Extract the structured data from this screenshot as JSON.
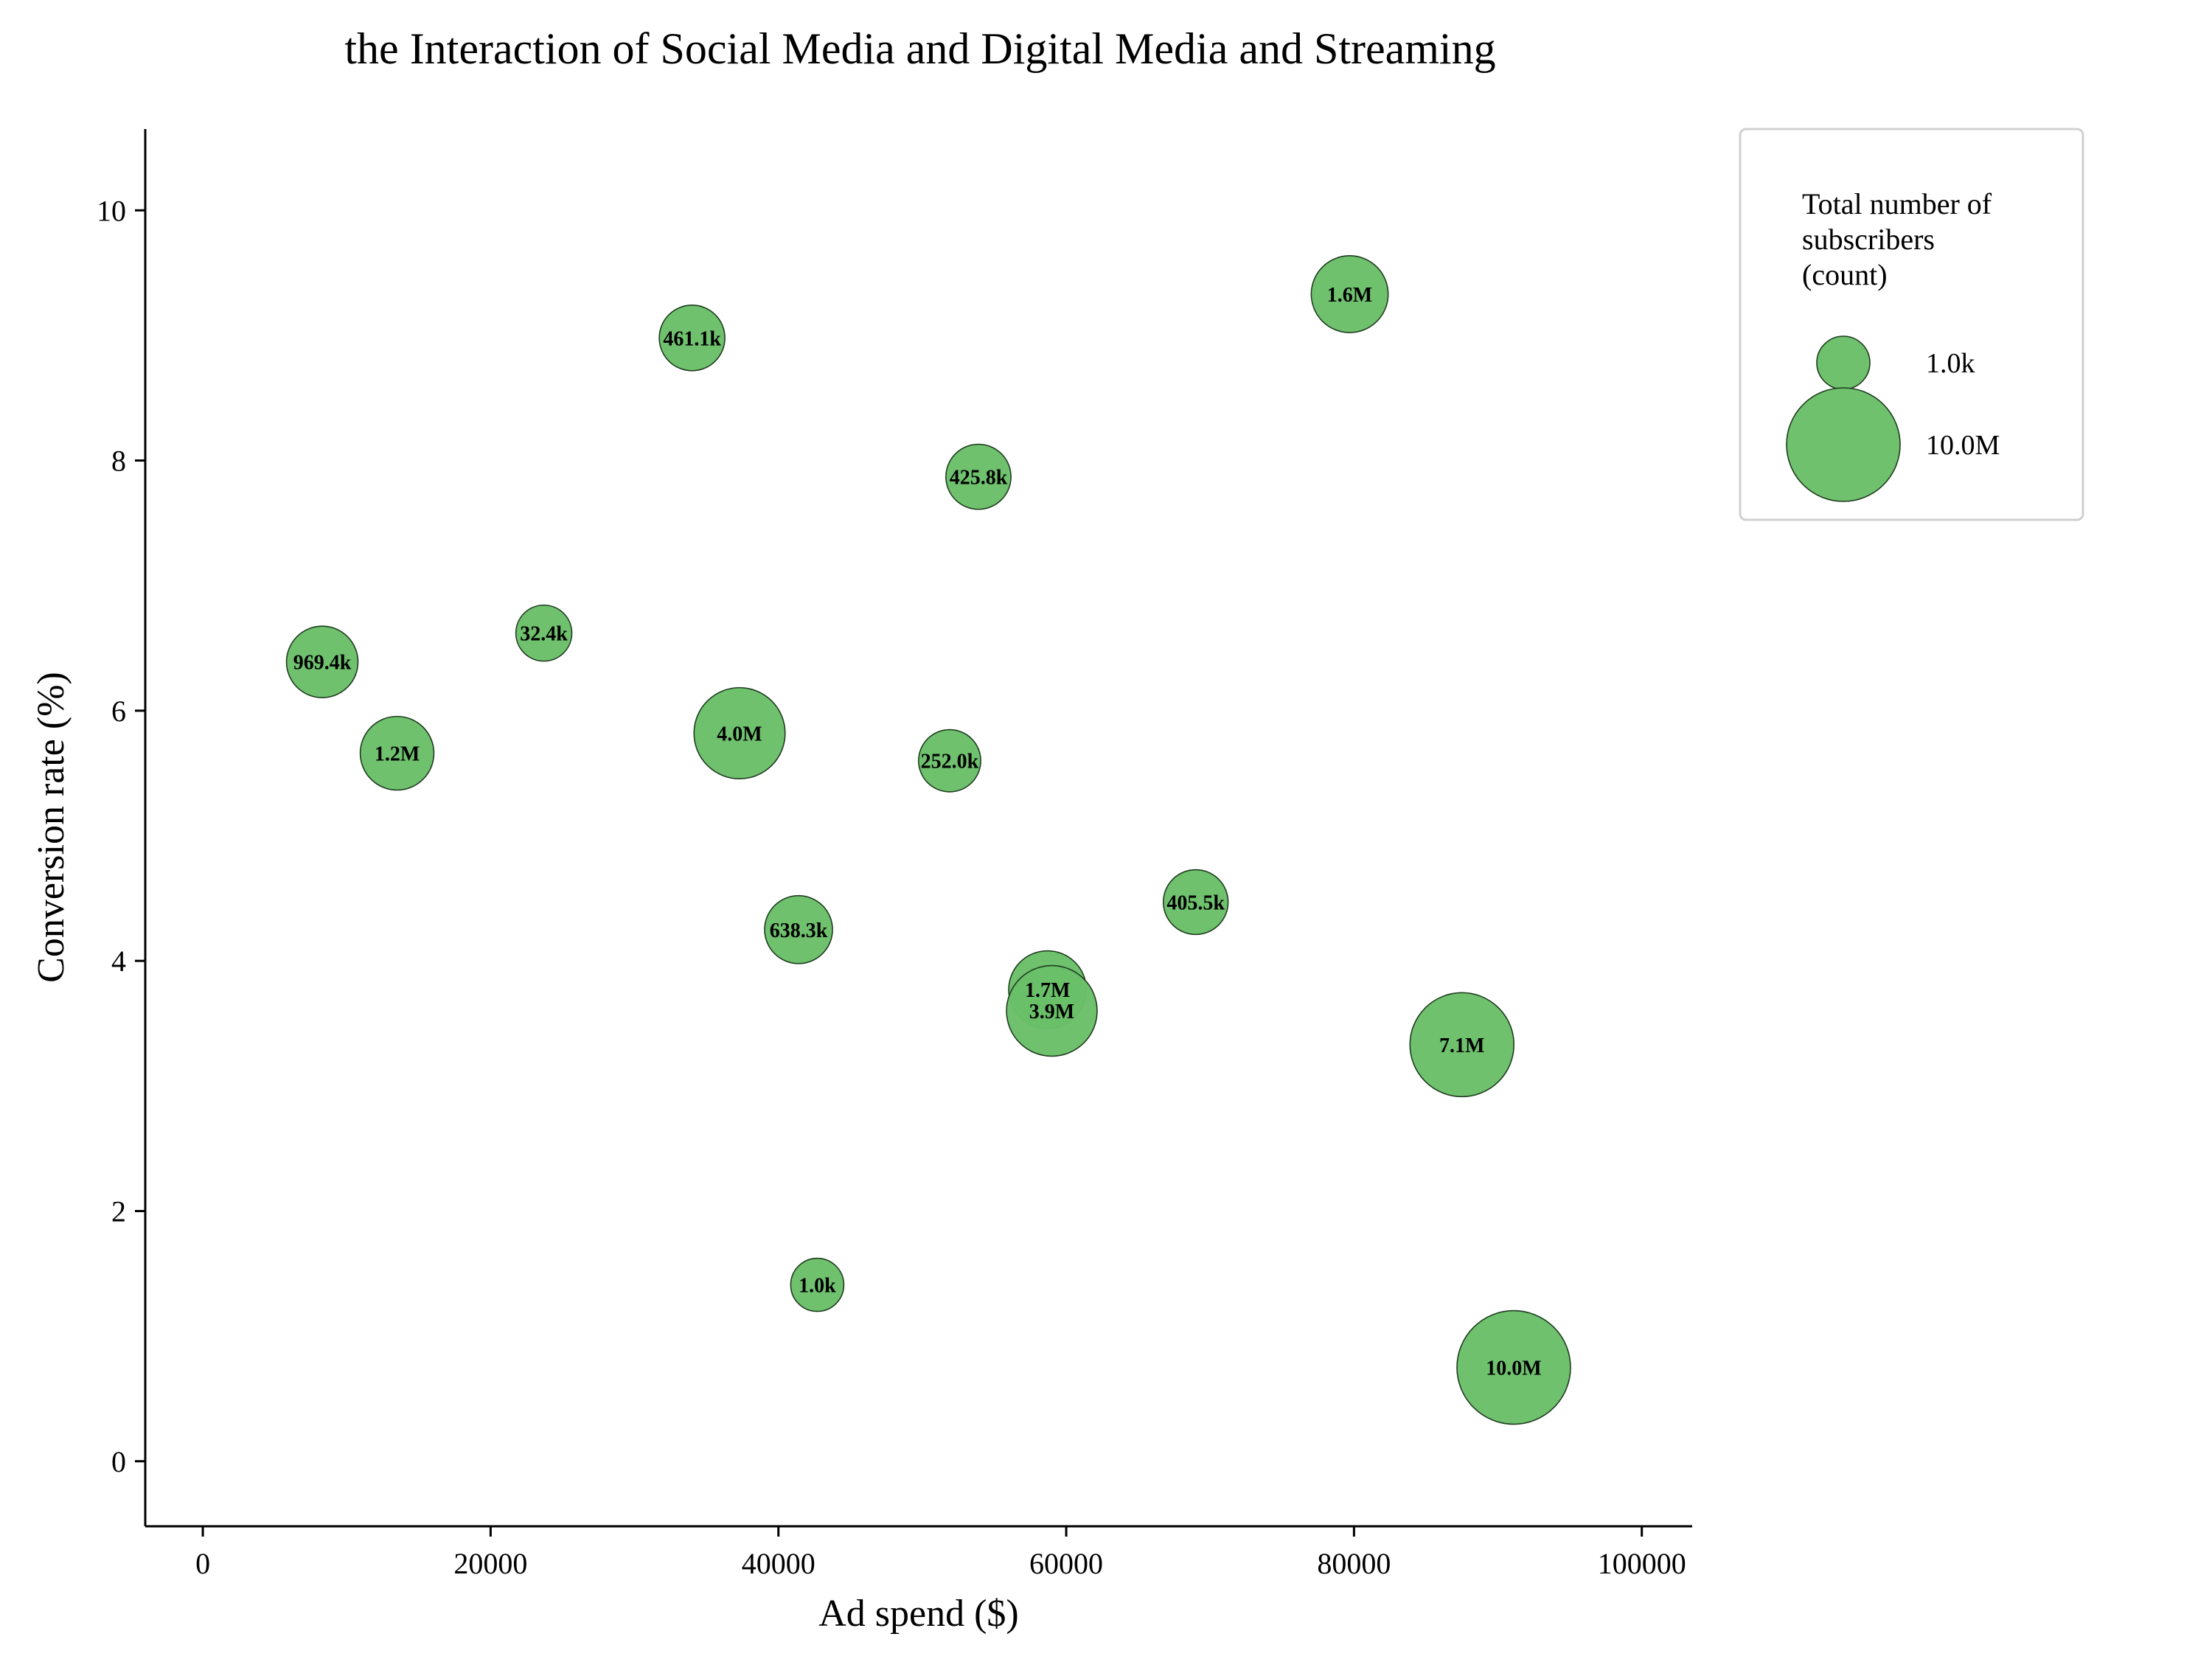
{
  "chart_data": {
    "type": "scatter",
    "title": "the Interaction of Social Media and Digital Media and Streaming",
    "xlabel": "Ad spend ($)",
    "ylabel": "Conversion rate (%)",
    "xlim": [
      -4000,
      103500
    ],
    "ylim": [
      -0.52,
      10.65
    ],
    "xticks": [
      0,
      20000,
      40000,
      60000,
      80000,
      100000
    ],
    "yticks": [
      0,
      2,
      4,
      6,
      8,
      10
    ],
    "grid": false,
    "legend_position": "outside-top-right",
    "colors": {
      "bubble": "#6abf69",
      "edge": "#1f3d1f"
    },
    "legend": {
      "title": "Total number of\nsubscribers\n(count)",
      "entries": [
        {
          "label": "1.0k",
          "value": 1000
        },
        {
          "label": "10.0M",
          "value": 10000000
        }
      ]
    },
    "points": [
      {
        "x": 8300,
        "y": 6.39,
        "size": 969400,
        "label": "969.4k"
      },
      {
        "x": 13500,
        "y": 5.66,
        "size": 1200000,
        "label": "1.2M"
      },
      {
        "x": 23700,
        "y": 6.62,
        "size": 32400,
        "label": "32.4k"
      },
      {
        "x": 34000,
        "y": 8.98,
        "size": 461100,
        "label": "461.1k"
      },
      {
        "x": 37300,
        "y": 5.82,
        "size": 4000000,
        "label": "4.0M"
      },
      {
        "x": 41400,
        "y": 4.25,
        "size": 638300,
        "label": "638.3k"
      },
      {
        "x": 42700,
        "y": 1.41,
        "size": 1000,
        "label": "1.0k"
      },
      {
        "x": 51900,
        "y": 5.6,
        "size": 252000,
        "label": "252.0k"
      },
      {
        "x": 53900,
        "y": 7.87,
        "size": 425800,
        "label": "425.8k"
      },
      {
        "x": 58700,
        "y": 3.77,
        "size": 1700000,
        "label": "1.7M"
      },
      {
        "x": 59000,
        "y": 3.6,
        "size": 3900000,
        "label": "3.9M"
      },
      {
        "x": 69000,
        "y": 4.47,
        "size": 405500,
        "label": "405.5k"
      },
      {
        "x": 79700,
        "y": 9.33,
        "size": 1600000,
        "label": "1.6M"
      },
      {
        "x": 87500,
        "y": 3.33,
        "size": 7100000,
        "label": "7.1M"
      },
      {
        "x": 91100,
        "y": 0.75,
        "size": 10000000,
        "label": "10.0M"
      }
    ]
  }
}
